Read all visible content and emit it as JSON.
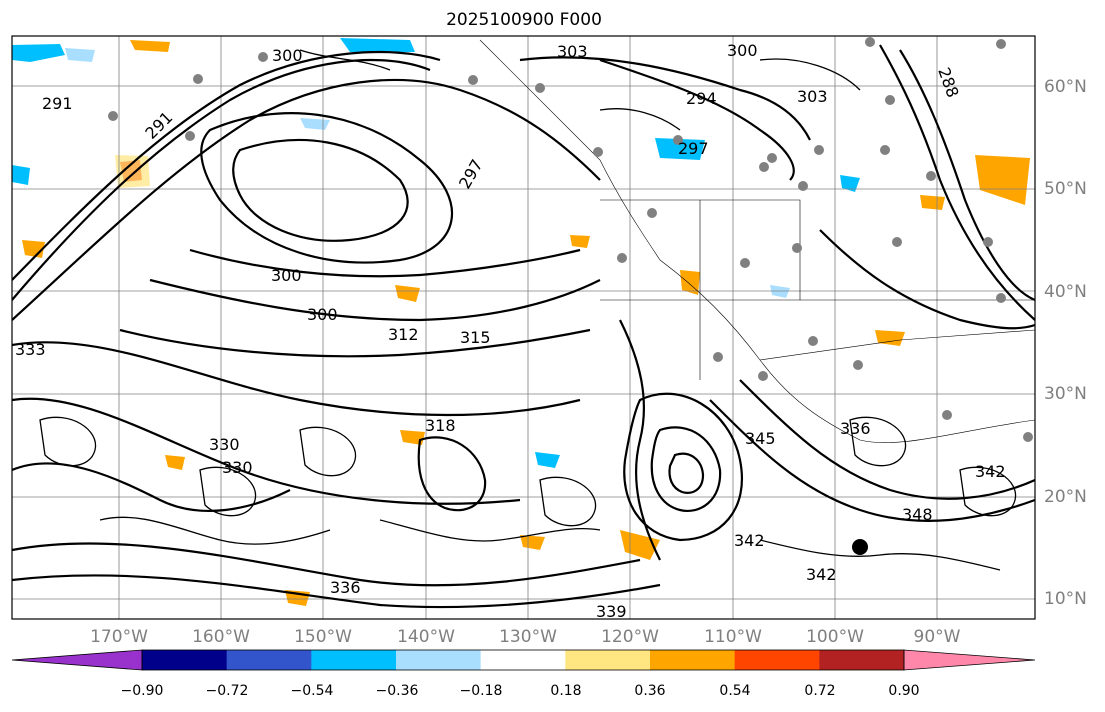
{
  "title": "2025100900 F000",
  "lat_labels": [
    "60°N",
    "50°N",
    "40°N",
    "30°N",
    "20°N",
    "10°N"
  ],
  "lon_labels": [
    "170°W",
    "160°W",
    "150°W",
    "140°W",
    "130°W",
    "120°W",
    "110°W",
    "100°W",
    "90°W"
  ],
  "contour_labels": [
    "291",
    "291",
    "300",
    "303",
    "294",
    "303",
    "300",
    "297",
    "297",
    "300",
    "288",
    "333",
    "330",
    "342",
    "342",
    "342",
    "339",
    "336",
    "348",
    "345",
    "300",
    "312",
    "315",
    "330",
    "336",
    "318"
  ],
  "colorbar": {
    "ticks": [
      "−0.90",
      "−0.72",
      "−0.54",
      "−0.36",
      "−0.18",
      "0.18",
      "0.36",
      "0.54",
      "0.72",
      "0.90"
    ],
    "colors": [
      "#9932cc",
      "#00008b",
      "#3355cc",
      "#00bfff",
      "#aadeff",
      "#ffffff",
      "#ffe680",
      "#ffa500",
      "#ff4500",
      "#b22222",
      "#ff88aa"
    ]
  },
  "fill_colors": {
    "orange": "#ffa500",
    "light_orange": "#ffe680",
    "cyan": "#00bfff",
    "light_cyan": "#aadeff",
    "red": "#ff4500"
  }
}
